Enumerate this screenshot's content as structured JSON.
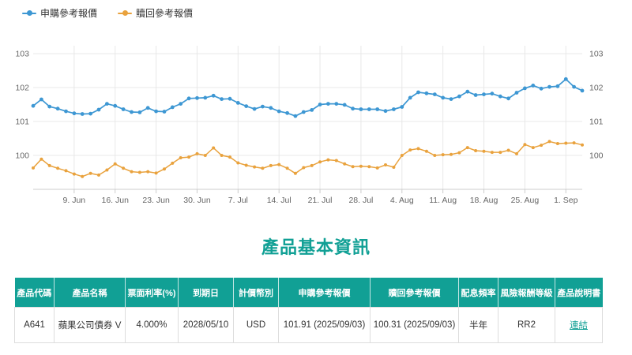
{
  "section": {
    "title": "產品基本資訊"
  },
  "colors": {
    "accent": "#11a095",
    "subscription_line": "#3d97d3",
    "redemption_line": "#e9a23d",
    "grid": "#e8e8e8",
    "axis_text": "#666666"
  },
  "chart_data": {
    "type": "line",
    "title": "",
    "xlabel": "",
    "ylabel": "",
    "grid": true,
    "legend_position": "top-left",
    "ylim": [
      99,
      103.2
    ],
    "y_ticks": [
      100,
      101,
      102,
      103
    ],
    "y_axis_sides": "both",
    "x_tick_labels": [
      "9. Jun",
      "16. Jun",
      "23. Jun",
      "30. Jun",
      "7. Jul",
      "14. Jul",
      "21. Jul",
      "28. Jul",
      "4. Aug",
      "11. Aug",
      "18. Aug",
      "25. Aug",
      "1. Sep"
    ],
    "x_tick_indices": [
      5,
      10,
      15,
      20,
      25,
      30,
      35,
      40,
      45,
      50,
      55,
      60,
      65
    ],
    "x": [
      "6/2",
      "6/3",
      "6/4",
      "6/5",
      "6/6",
      "6/9",
      "6/10",
      "6/11",
      "6/12",
      "6/13",
      "6/16",
      "6/17",
      "6/18",
      "6/19",
      "6/20",
      "6/23",
      "6/24",
      "6/25",
      "6/26",
      "6/27",
      "6/30",
      "7/1",
      "7/2",
      "7/3",
      "7/4",
      "7/7",
      "7/8",
      "7/9",
      "7/10",
      "7/11",
      "7/14",
      "7/15",
      "7/16",
      "7/17",
      "7/18",
      "7/21",
      "7/22",
      "7/23",
      "7/24",
      "7/25",
      "7/28",
      "7/29",
      "7/30",
      "7/31",
      "8/1",
      "8/4",
      "8/5",
      "8/6",
      "8/7",
      "8/8",
      "8/11",
      "8/12",
      "8/13",
      "8/14",
      "8/15",
      "8/18",
      "8/19",
      "8/20",
      "8/21",
      "8/22",
      "8/25",
      "8/26",
      "8/27",
      "8/28",
      "8/29",
      "9/1",
      "9/2",
      "9/3"
    ],
    "series": [
      {
        "name": "申購參考報價",
        "color": "#3d97d3",
        "values": [
          101.46,
          101.65,
          101.44,
          101.38,
          101.3,
          101.24,
          101.22,
          101.23,
          101.35,
          101.52,
          101.46,
          101.36,
          101.28,
          101.27,
          101.4,
          101.3,
          101.29,
          101.42,
          101.52,
          101.68,
          101.69,
          101.7,
          101.76,
          101.66,
          101.67,
          101.55,
          101.45,
          101.37,
          101.44,
          101.4,
          101.3,
          101.25,
          101.16,
          101.28,
          101.34,
          101.5,
          101.52,
          101.52,
          101.49,
          101.38,
          101.36,
          101.36,
          101.36,
          101.31,
          101.36,
          101.43,
          101.7,
          101.86,
          101.83,
          101.8,
          101.7,
          101.66,
          101.74,
          101.88,
          101.78,
          101.8,
          101.82,
          101.74,
          101.68,
          101.85,
          101.98,
          102.06,
          101.97,
          102.02,
          102.04,
          102.25,
          102.02,
          101.91
        ]
      },
      {
        "name": "贖回參考報價",
        "color": "#e9a23d",
        "values": [
          99.63,
          99.89,
          99.7,
          99.62,
          99.55,
          99.45,
          99.38,
          99.47,
          99.42,
          99.57,
          99.75,
          99.62,
          99.52,
          99.5,
          99.52,
          99.48,
          99.6,
          99.77,
          99.93,
          99.95,
          100.05,
          100.0,
          100.22,
          100.0,
          99.95,
          99.78,
          99.71,
          99.66,
          99.62,
          99.7,
          99.73,
          99.62,
          99.47,
          99.64,
          99.7,
          99.81,
          99.87,
          99.85,
          99.75,
          99.67,
          99.68,
          99.67,
          99.63,
          99.72,
          99.65,
          100.0,
          100.16,
          100.2,
          100.12,
          100.0,
          100.02,
          100.03,
          100.08,
          100.23,
          100.14,
          100.12,
          100.09,
          100.09,
          100.15,
          100.05,
          100.32,
          100.23,
          100.3,
          100.41,
          100.35,
          100.36,
          100.37,
          100.31
        ]
      }
    ]
  },
  "table": {
    "headers": [
      "產品代碼",
      "產品名稱",
      "票面利率(%)",
      "到期日",
      "計價幣別",
      "申購參考報價",
      "贖回參考報價",
      "配息頻率",
      "風險報酬等級",
      "產品說明書"
    ],
    "row": [
      "A641",
      "蘋果公司債券 V",
      "4.000%",
      "2028/05/10",
      "USD",
      "101.91 (2025/09/03)",
      "100.31 (2025/09/03)",
      "半年",
      "RR2",
      "連結"
    ]
  }
}
